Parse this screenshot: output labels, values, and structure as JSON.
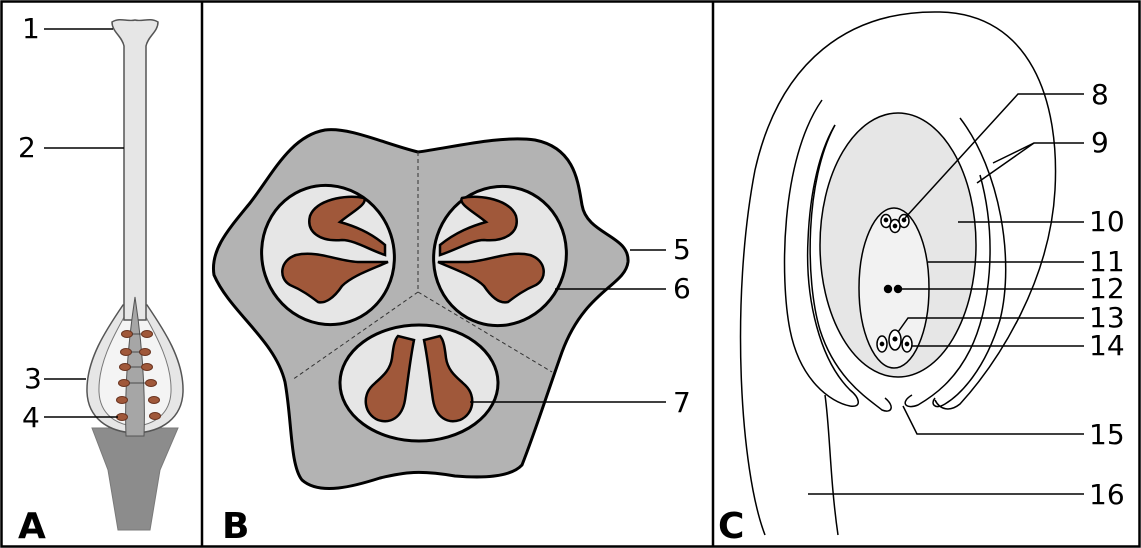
{
  "panels": {
    "a": "A",
    "b": "B",
    "c": "C"
  },
  "labels": {
    "l1": "1",
    "l2": "2",
    "l3": "3",
    "l4": "4",
    "l5": "5",
    "l6": "6",
    "l7": "7",
    "l8": "8",
    "l9": "9",
    "l10": "10",
    "l11": "11",
    "l12": "12",
    "l13": "13",
    "l14": "14",
    "l15": "15",
    "l16": "16"
  },
  "colors": {
    "frame": "#000000",
    "light_gray": "#e6e6e6",
    "medium_gray": "#b3b3b3",
    "dark_gray": "#8c8c8c",
    "ovule_brown": "#a0583a",
    "embryo_sac": "#f2f2f2"
  }
}
